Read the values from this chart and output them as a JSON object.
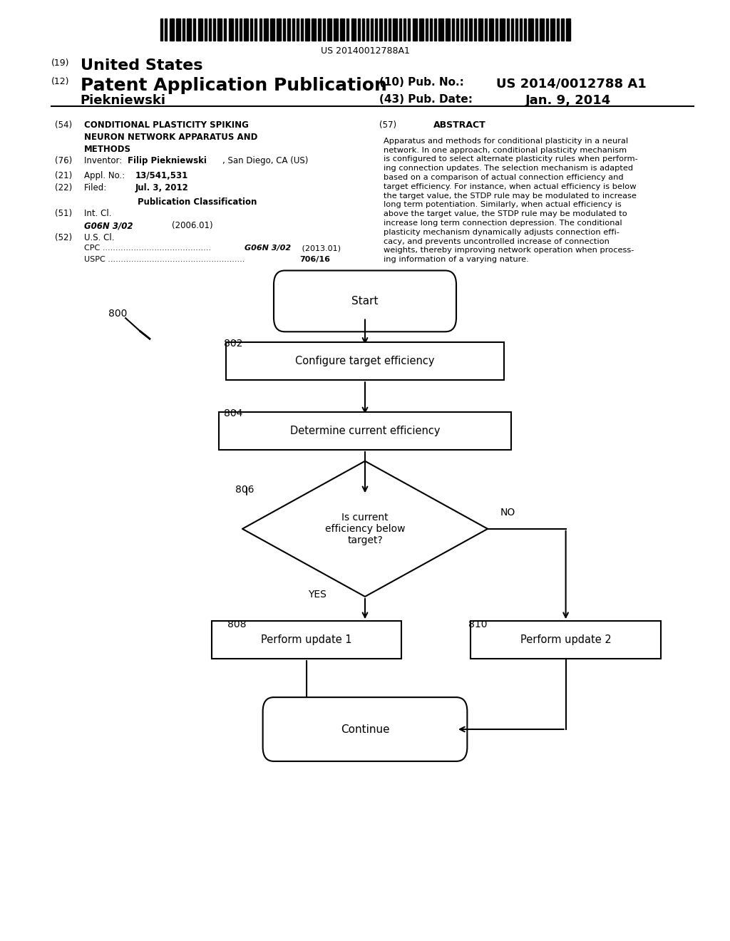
{
  "bg_color": "#ffffff",
  "barcode_text": "US 20140012788A1",
  "header_19": "(19)",
  "header_19_text": "United States",
  "header_12": "(12)",
  "header_12_text": "Patent Application Publication",
  "header_10": "(10) Pub. No.:",
  "header_10_val": "US 2014/0012788 A1",
  "header_name": "Piekniewski",
  "header_43": "(43) Pub. Date:",
  "header_43_val": "Jan. 9, 2014",
  "field_54_label": "(54)",
  "field_54_text": "CONDITIONAL PLASTICITY SPIKING\nNEURON NETWORK APPARATUS AND\nMETHODS",
  "field_57_label": "(57)",
  "field_57_title": "ABSTRACT",
  "abstract_text": "Apparatus and methods for conditional plasticity in a neural\nnetwork. In one approach, conditional plasticity mechanism\nis configured to select alternate plasticity rules when perform-\ning connection updates. The selection mechanism is adapted\nbased on a comparison of actual connection efficiency and\ntarget efficiency. For instance, when actual efficiency is below\nthe target value, the STDP rule may be modulated to increase\nlong term potentiation. Similarly, when actual efficiency is\nabove the target value, the STDP rule may be modulated to\nincrease long term connection depression. The conditional\nplasticity mechanism dynamically adjusts connection effi-\ncacy, and prevents uncontrolled increase of connection\nweights, thereby improving network operation when process-\ning information of a varying nature.",
  "field_76_label": "(76)",
  "field_21_label": "(21)",
  "field_22_label": "(22)",
  "pub_class_title": "Publication Classification",
  "field_51_label": "(51)",
  "field_51_text": "Int. Cl.",
  "field_51_val1": "G06N 3/02",
  "field_51_val2": "(2006.01)",
  "field_52_label": "(52)",
  "field_52_text": "U.S. Cl.",
  "node_start_text": "Start",
  "node_configure_text": "Configure target efficiency",
  "node_determine_text": "Determine current efficiency",
  "node_diamond_text": "Is current\nefficiency below\ntarget?",
  "label_yes": "YES",
  "label_no": "NO",
  "node_update1_text": "Perform update 1",
  "node_update2_text": "Perform update 2",
  "node_continue_text": "Continue"
}
